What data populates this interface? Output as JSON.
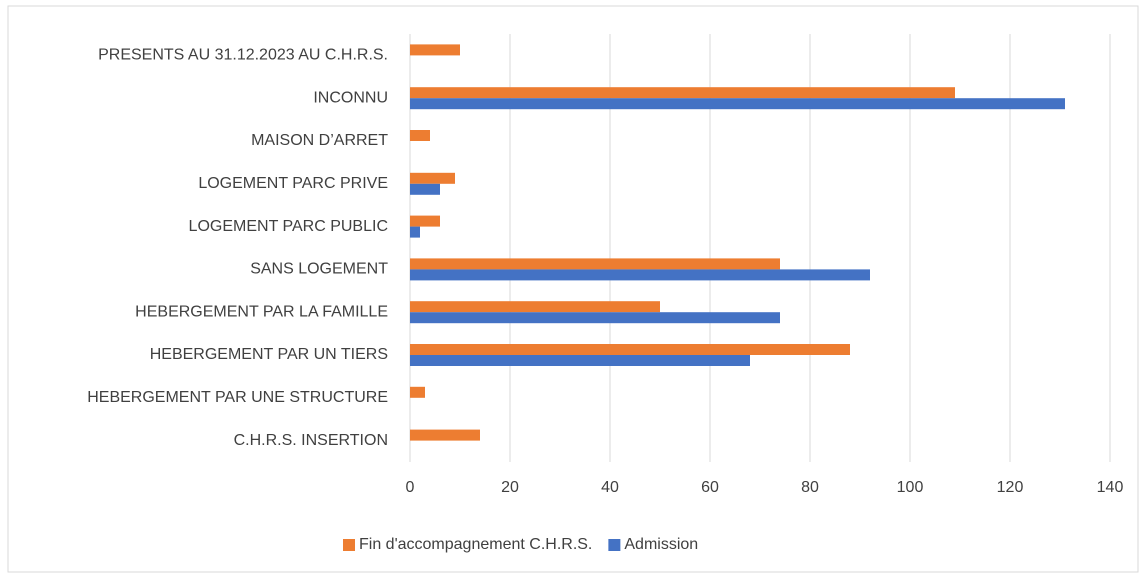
{
  "chart_data": {
    "type": "hbar",
    "categories": [
      "PRESENTS AU 31.12.2023 AU C.H.R.S.",
      "INCONNU",
      "MAISON D’ARRET",
      "LOGEMENT PARC PRIVE",
      "LOGEMENT PARC PUBLIC",
      "SANS LOGEMENT",
      "HEBERGEMENT PAR LA FAMILLE",
      "HEBERGEMENT PAR UN TIERS",
      "HEBERGEMENT PAR UNE STRUCTURE",
      "C.H.R.S. INSERTION"
    ],
    "series": [
      {
        "name": "Fin d'accompagnement C.H.R.S.",
        "color": "#ed7d31",
        "values": [
          10,
          109,
          4,
          9,
          6,
          74,
          50,
          88,
          3,
          14
        ]
      },
      {
        "name": "Admission",
        "color": "#4472c4",
        "values": [
          0,
          131,
          0,
          6,
          2,
          92,
          74,
          68,
          0,
          0
        ]
      }
    ],
    "xlim": [
      0,
      140
    ],
    "xticks": [
      0,
      20,
      40,
      60,
      80,
      100,
      120,
      140
    ],
    "grid": true,
    "legend": "bottom"
  }
}
